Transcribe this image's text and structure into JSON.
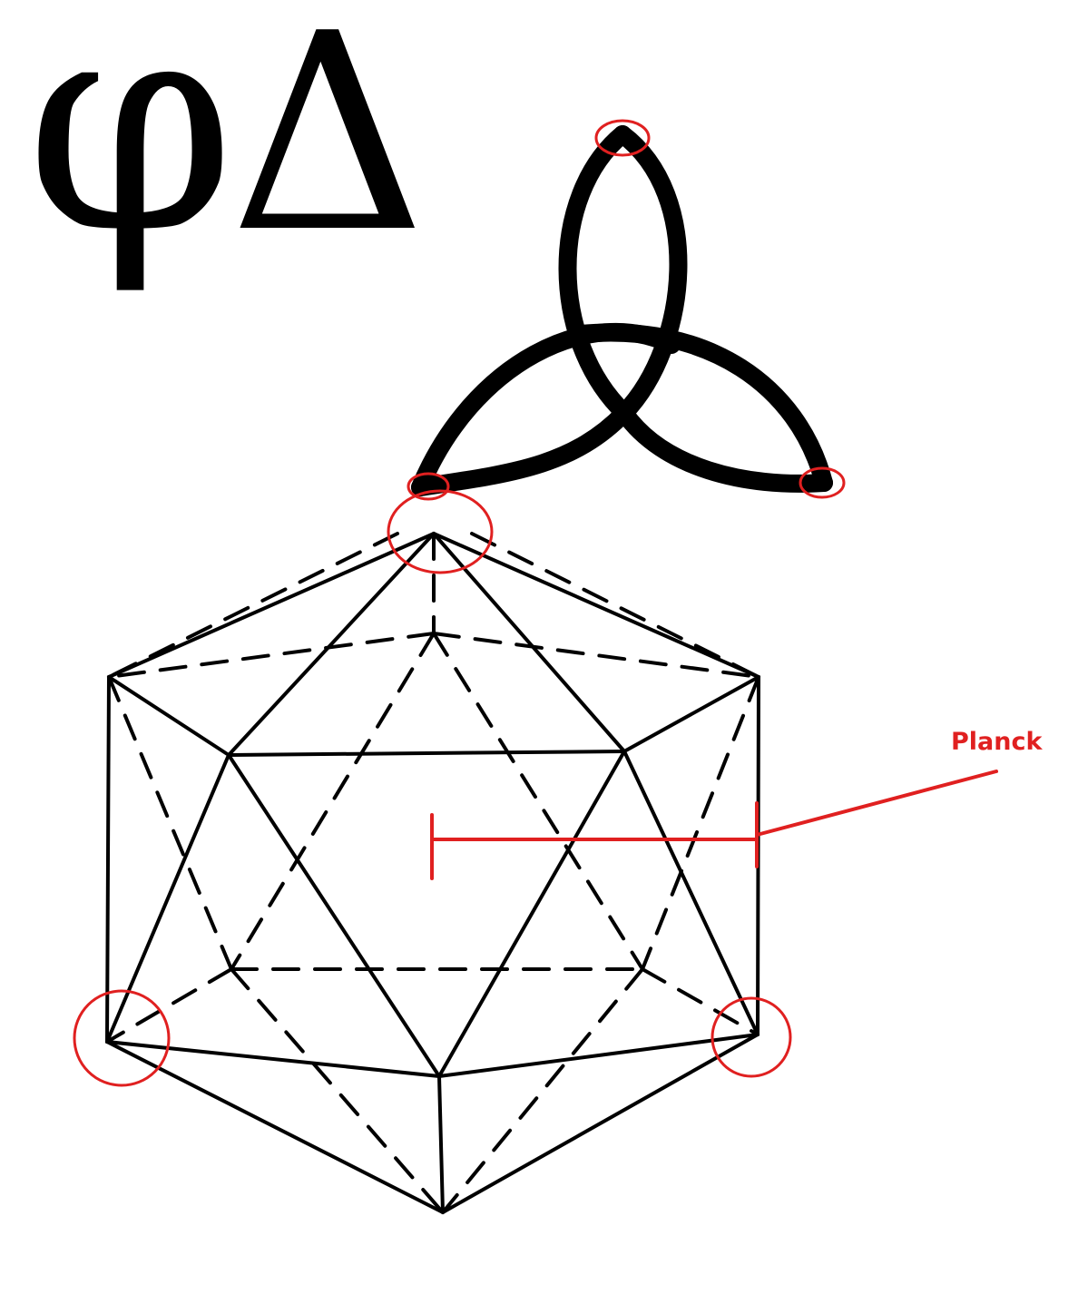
{
  "symbols": {
    "phi": "φ",
    "delta": "Δ"
  },
  "annotation": {
    "label": "Planck"
  },
  "colors": {
    "ink": "#000000",
    "highlight": "#e02020"
  },
  "icons": [
    "triquetra-knot",
    "icosahedron-wireframe",
    "measure-bracket"
  ]
}
